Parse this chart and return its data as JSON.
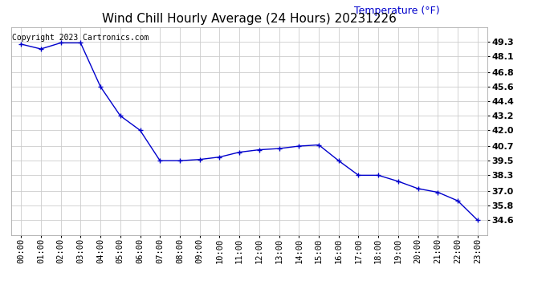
{
  "title": "Wind Chill Hourly Average (24 Hours) 20231226",
  "ylabel_text": "Temperature (°F)",
  "copyright_text": "Copyright 2023 Cartronics.com",
  "hours": [
    "00:00",
    "01:00",
    "02:00",
    "03:00",
    "04:00",
    "05:00",
    "06:00",
    "07:00",
    "08:00",
    "09:00",
    "10:00",
    "11:00",
    "12:00",
    "13:00",
    "14:00",
    "15:00",
    "16:00",
    "17:00",
    "18:00",
    "19:00",
    "20:00",
    "21:00",
    "22:00",
    "23:00"
  ],
  "values": [
    49.1,
    48.7,
    49.2,
    49.2,
    45.6,
    43.2,
    42.0,
    39.5,
    39.5,
    39.6,
    39.8,
    40.2,
    40.4,
    40.5,
    40.7,
    40.8,
    39.5,
    38.3,
    38.3,
    37.8,
    37.2,
    36.9,
    36.2,
    34.6
  ],
  "line_color": "#0000CC",
  "marker": "+",
  "marker_size": 4,
  "ylim_min": 33.4,
  "ylim_max": 50.5,
  "yticks": [
    34.6,
    35.8,
    37.0,
    38.3,
    39.5,
    40.7,
    42.0,
    43.2,
    44.4,
    45.6,
    46.8,
    48.1,
    49.3
  ],
  "background_color": "#ffffff",
  "grid_color": "#cccccc",
  "title_color": "#000000",
  "ylabel_color": "#0000CC",
  "title_fontsize": 11,
  "ylabel_fontsize": 9,
  "tick_fontsize": 7.5,
  "ytick_fontsize": 8,
  "copyright_color": "#000000",
  "copyright_fontsize": 7
}
